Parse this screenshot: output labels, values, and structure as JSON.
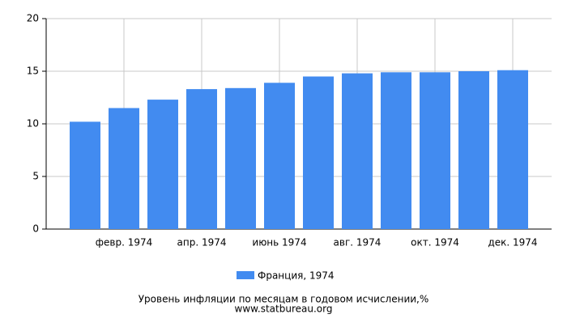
{
  "chart_data": {
    "type": "bar",
    "title": "Уровень инфляции по месяцам в годовом исчислении,%",
    "subtitle": "www.statbureau.org",
    "categories": [
      null,
      "февр. 1974",
      null,
      "апр. 1974",
      null,
      "июнь 1974",
      null,
      "авг. 1974",
      null,
      "окт. 1974",
      null,
      "дек. 1974"
    ],
    "series": [
      {
        "name": "Франция, 1974",
        "color": "#428bf0",
        "values": [
          10.2,
          11.5,
          12.3,
          13.3,
          13.4,
          13.9,
          14.5,
          14.8,
          14.9,
          14.9,
          15.0,
          15.1
        ]
      }
    ],
    "ylim": [
      0,
      20
    ],
    "yticks": [
      0,
      5,
      10,
      15,
      20
    ],
    "grid": true
  }
}
